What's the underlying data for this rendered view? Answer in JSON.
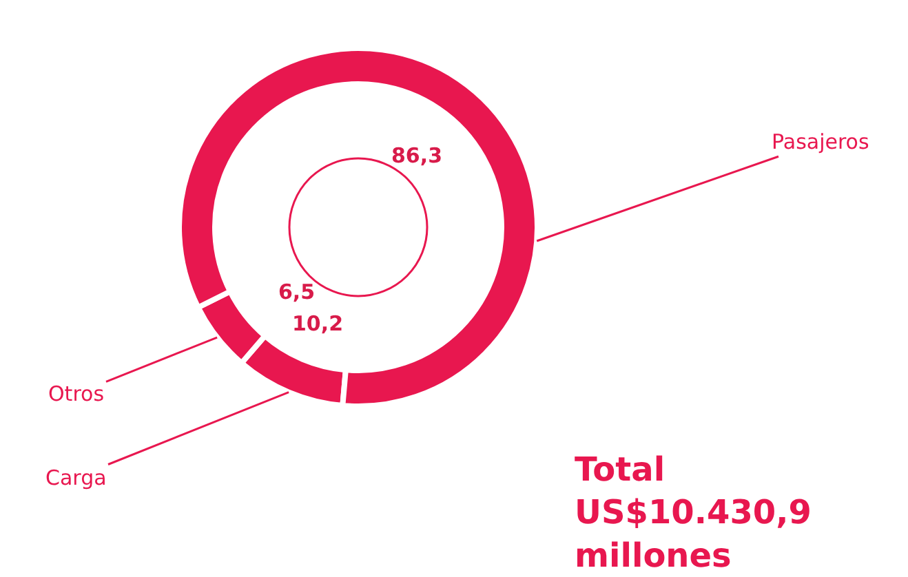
{
  "chart_data": {
    "type": "donut",
    "categories": [
      "Carga",
      "Otros",
      "Pasajeros"
    ],
    "values": [
      10.2,
      6.5,
      86.3
    ],
    "colors": [
      "#e8174f",
      "#e8174f",
      "#e8174f"
    ],
    "value_labels": [
      "10,2",
      "6,5",
      "86,3"
    ],
    "legend": false,
    "annotations": [
      "Total\nUS$10.430,9\nmillones"
    ]
  }
}
